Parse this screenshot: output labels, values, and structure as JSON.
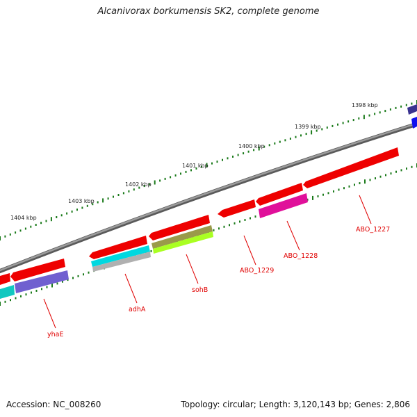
{
  "title": "Alcanivorax borkumensis SK2, complete genome",
  "footer": {
    "accession": "Accession: NC_008260",
    "topology": "Topology: circular; Length: 3,120,143 bp; Genes: 2,806"
  },
  "scale_labels": [
    "1398 kbp",
    "1399 kbp",
    "1400 kbp",
    "1401 kbp",
    "1402 kbp",
    "1403 kbp",
    "1404 kbp"
  ],
  "gene_labels": [
    "ABO_1227",
    "ABO_1228",
    "ABO_1229",
    "sohB",
    "adhA",
    "yhaE"
  ],
  "colors": {
    "backbone": "#808080",
    "tick": "#1a7a1a",
    "gene_red": "#ee0000",
    "cyan": "#00d8e0",
    "purple": "#7060d0",
    "magenta": "#e0109a",
    "olive": "#9a9a4a",
    "lime": "#aaff22",
    "gray": "#b0b0b0",
    "navy": "#3a3290",
    "blue": "#1010ee",
    "teal": "#10c8c0",
    "label": "#e00000"
  }
}
